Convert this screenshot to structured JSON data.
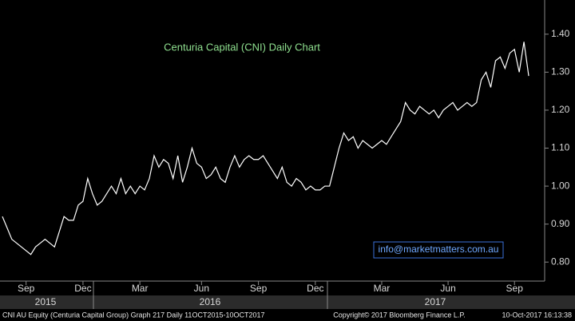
{
  "chart_data": {
    "type": "line",
    "title": "Centuria Capital (CNI) Daily Chart",
    "watermark": "info@marketmatters.com.au",
    "categories": [
      null,
      null,
      null,
      null,
      null,
      "Sep",
      null,
      null,
      null,
      null,
      null,
      null,
      null,
      null,
      null,
      null,
      null,
      "Dec",
      null,
      null,
      null,
      null,
      null,
      null,
      null,
      null,
      null,
      null,
      null,
      "Mar",
      null,
      null,
      null,
      null,
      null,
      null,
      null,
      null,
      null,
      null,
      null,
      null,
      "Jun",
      null,
      null,
      null,
      null,
      null,
      null,
      null,
      null,
      null,
      null,
      null,
      "Sep",
      null,
      null,
      null,
      null,
      null,
      null,
      null,
      null,
      null,
      null,
      null,
      "Dec",
      null,
      null,
      null,
      null,
      null,
      null,
      null,
      null,
      null,
      null,
      null,
      null,
      null,
      "Mar",
      null,
      null,
      null,
      null,
      null,
      null,
      null,
      null,
      null,
      null,
      null,
      null,
      null,
      "Jun",
      null,
      null,
      null,
      null,
      null,
      null,
      null,
      null,
      null,
      null,
      null,
      null,
      null,
      "Sep",
      null,
      null,
      null
    ],
    "year_labels": [
      "2015",
      "2016",
      "2017"
    ],
    "values": [
      0.92,
      0.89,
      0.86,
      0.85,
      0.84,
      0.83,
      0.82,
      0.84,
      0.85,
      0.86,
      0.85,
      0.84,
      0.88,
      0.92,
      0.91,
      0.91,
      0.95,
      0.96,
      1.02,
      0.98,
      0.95,
      0.96,
      0.98,
      1.0,
      0.98,
      1.02,
      0.98,
      1.0,
      0.98,
      1.0,
      0.99,
      1.02,
      1.08,
      1.05,
      1.07,
      1.06,
      1.02,
      1.08,
      1.01,
      1.05,
      1.1,
      1.06,
      1.05,
      1.02,
      1.03,
      1.05,
      1.02,
      1.01,
      1.05,
      1.08,
      1.05,
      1.07,
      1.08,
      1.07,
      1.07,
      1.08,
      1.06,
      1.04,
      1.02,
      1.05,
      1.01,
      1.0,
      1.02,
      1.01,
      0.99,
      1.0,
      0.99,
      0.99,
      1.0,
      1.0,
      1.05,
      1.1,
      1.14,
      1.12,
      1.13,
      1.1,
      1.12,
      1.11,
      1.1,
      1.11,
      1.12,
      1.11,
      1.13,
      1.15,
      1.17,
      1.22,
      1.2,
      1.19,
      1.21,
      1.2,
      1.19,
      1.2,
      1.18,
      1.2,
      1.21,
      1.22,
      1.2,
      1.21,
      1.22,
      1.21,
      1.22,
      1.28,
      1.3,
      1.26,
      1.33,
      1.34,
      1.31,
      1.35,
      1.36,
      1.3,
      1.38,
      1.29
    ],
    "color": "#ffffff",
    "ylim": [
      0.75,
      1.49
    ],
    "yticks": [
      {
        "value": 0.8,
        "label": "0.80"
      },
      {
        "value": 0.9,
        "label": "0.90"
      },
      {
        "value": 1.0,
        "label": "1.00"
      },
      {
        "value": 1.1,
        "label": "1.10"
      },
      {
        "value": 1.2,
        "label": "1.20"
      },
      {
        "value": 1.3,
        "label": "1.30"
      },
      {
        "value": 1.4,
        "label": "1.40"
      }
    ],
    "grid": false
  },
  "footer": {
    "left": "CNI AU Equity (Centuria Capital Group) Graph 217  Daily 11OCT2015-10OCT2017",
    "center": "Copyright© 2017 Bloomberg Finance L.P.",
    "right": "10-Oct-2017 16:13:38"
  }
}
